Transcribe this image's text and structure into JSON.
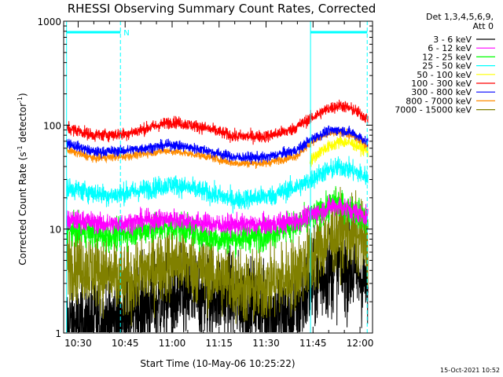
{
  "chart_data": {
    "type": "line",
    "title": "RHESSI Observing Summary Count Rates, Corrected",
    "xlabel": "Start Time (10-May-06 10:25:22)",
    "ylabel": "Corrected Count Rate (s",
    "ylabel_sup1": "-1",
    "ylabel_mid": " detector",
    "ylabel_sup2": "-1",
    "ylabel_end": ")",
    "y_scale": "log",
    "ylim": [
      1,
      1000
    ],
    "xlim_min": [
      25.37,
      124.0
    ],
    "x_ticks": [
      {
        "min": 30,
        "label": "10:30"
      },
      {
        "min": 45,
        "label": "10:45"
      },
      {
        "min": 60,
        "label": "11:00"
      },
      {
        "min": 75,
        "label": "11:15"
      },
      {
        "min": 90,
        "label": "11:30"
      },
      {
        "min": 105,
        "label": "11:45"
      },
      {
        "min": 120,
        "label": "12:00"
      }
    ],
    "y_ticks": [
      {
        "value": 1,
        "label": "1"
      },
      {
        "value": 10,
        "label": "10"
      },
      {
        "value": 100,
        "label": "100"
      },
      {
        "value": 1000,
        "label": "1000"
      }
    ],
    "legend_header": [
      "Det 1,3,4,5,6,9,",
      "Att 0"
    ],
    "vertical_markers_min": [
      26.3,
      43.5,
      104.2,
      122.3
    ],
    "night_bars": [
      {
        "start_min": 26.3,
        "end_min": 43.5,
        "flag": "N"
      },
      {
        "start_min": 104.2,
        "end_min": 122.3,
        "flag": ""
      }
    ],
    "series": [
      {
        "name": "3 - 6 keV",
        "color": "#000000",
        "knots": [
          [
            26.3,
            1.2
          ],
          [
            40,
            1.3
          ],
          [
            55,
            2.0
          ],
          [
            75,
            2.4
          ],
          [
            98,
            1.4
          ],
          [
            104,
            2.8
          ],
          [
            113,
            4.5
          ],
          [
            120,
            3.5
          ],
          [
            122.6,
            2.8
          ]
        ],
        "noise": 0.22
      },
      {
        "name": "6 - 12 keV",
        "color": "#ff00ff",
        "knots": [
          [
            26.3,
            12
          ],
          [
            32,
            12
          ],
          [
            40,
            11
          ],
          [
            50,
            12
          ],
          [
            60,
            12.5
          ],
          [
            75,
            11
          ],
          [
            90,
            11
          ],
          [
            100,
            12
          ],
          [
            105,
            14
          ],
          [
            112,
            17
          ],
          [
            118,
            15
          ],
          [
            122.6,
            13
          ]
        ],
        "noise": 0.05
      },
      {
        "name": "12 - 25 keV",
        "color": "#00ff00",
        "knots": [
          [
            26.3,
            10
          ],
          [
            40,
            8.5
          ],
          [
            52,
            10
          ],
          [
            62,
            10.5
          ],
          [
            75,
            8
          ],
          [
            88,
            8.5
          ],
          [
            100,
            11
          ],
          [
            105,
            13
          ],
          [
            112,
            18
          ],
          [
            118,
            15
          ],
          [
            122.6,
            12
          ]
        ],
        "noise": 0.07
      },
      {
        "name": "25 - 50 keV",
        "color": "#00ffff",
        "knots": [
          [
            26.3,
            25
          ],
          [
            40,
            21
          ],
          [
            48,
            23
          ],
          [
            60,
            27
          ],
          [
            70,
            23
          ],
          [
            80,
            19
          ],
          [
            92,
            21
          ],
          [
            102,
            27
          ],
          [
            108,
            35
          ],
          [
            114,
            40
          ],
          [
            119,
            35
          ],
          [
            122.6,
            31
          ]
        ],
        "noise": 0.05
      },
      {
        "name": "50 - 100 keV",
        "color": "#ffff00",
        "knots": [
          [
            104,
            45
          ],
          [
            108,
            58
          ],
          [
            114,
            70
          ],
          [
            118,
            66
          ],
          [
            122.6,
            56
          ]
        ],
        "noise": 0.03
      },
      {
        "name": "100 - 300 keV",
        "color": "#ff0000",
        "knots": [
          [
            26.3,
            95
          ],
          [
            35,
            80
          ],
          [
            45,
            82
          ],
          [
            60,
            108
          ],
          [
            70,
            95
          ],
          [
            80,
            78
          ],
          [
            90,
            78
          ],
          [
            98,
            90
          ],
          [
            104,
            115
          ],
          [
            110,
            145
          ],
          [
            114,
            155
          ],
          [
            118,
            140
          ],
          [
            122.6,
            115
          ]
        ],
        "noise": 0.03
      },
      {
        "name": "300 - 800 keV",
        "color": "#0000ff",
        "knots": [
          [
            26.3,
            68
          ],
          [
            35,
            55
          ],
          [
            45,
            57
          ],
          [
            60,
            65
          ],
          [
            70,
            58
          ],
          [
            80,
            49
          ],
          [
            90,
            49
          ],
          [
            100,
            58
          ],
          [
            105,
            75
          ],
          [
            110,
            88
          ],
          [
            114,
            90
          ],
          [
            118,
            83
          ],
          [
            122.6,
            68
          ]
        ],
        "noise": 0.025
      },
      {
        "name": "800 - 7000 keV",
        "color": "#ff8c00",
        "knots": [
          [
            26.3,
            58
          ],
          [
            35,
            48
          ],
          [
            45,
            50
          ],
          [
            58,
            57
          ],
          [
            70,
            51
          ],
          [
            80,
            43
          ],
          [
            90,
            43
          ],
          [
            100,
            51
          ],
          [
            105,
            70
          ],
          [
            110,
            83
          ],
          [
            114,
            86
          ],
          [
            118,
            78
          ],
          [
            122.6,
            63
          ]
        ],
        "noise": 0.02
      },
      {
        "name": "7000 - 15000 keV",
        "color": "#808000",
        "knots": [
          [
            26.3,
            5
          ],
          [
            36,
            4
          ],
          [
            45,
            3
          ],
          [
            52,
            4
          ],
          [
            62,
            5
          ],
          [
            75,
            3.5
          ],
          [
            85,
            2.6
          ],
          [
            98,
            3.5
          ],
          [
            104,
            5
          ],
          [
            108,
            7
          ],
          [
            114,
            10
          ],
          [
            119,
            8.5
          ],
          [
            122.6,
            7
          ]
        ],
        "noise": 0.18
      }
    ]
  },
  "timestamp": "15-Oct-2021 10:52"
}
